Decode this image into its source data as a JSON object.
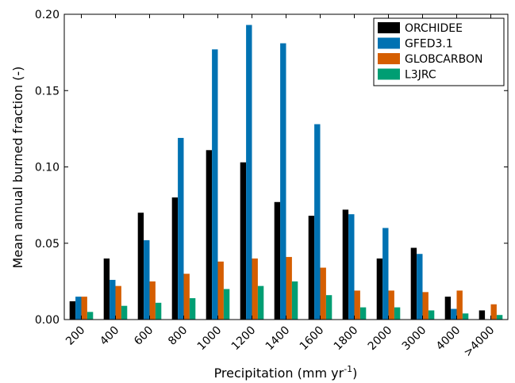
{
  "chart_data": {
    "type": "bar",
    "xlabel": "Precipitation (mm yr",
    "xlabel_sup": "-1",
    "xlabel_end": ")",
    "ylabel": "Mean annual burned fraction (-)",
    "ylim": [
      0,
      0.2
    ],
    "yticks": [
      "0.00",
      "0.05",
      "0.10",
      "0.15",
      "0.20"
    ],
    "categories": [
      "200",
      "400",
      "600",
      "800",
      "1000",
      "1200",
      "1400",
      "1600",
      "1800",
      "2000",
      "3000",
      "4000",
      ">4000"
    ],
    "series": [
      {
        "name": "ORCHIDEE",
        "color": "#000000",
        "values": [
          0.012,
          0.04,
          0.07,
          0.08,
          0.111,
          0.103,
          0.077,
          0.068,
          0.072,
          0.04,
          0.047,
          0.015,
          0.006
        ]
      },
      {
        "name": "GFED3.1",
        "color": "#0072b2",
        "values": [
          0.015,
          0.026,
          0.052,
          0.119,
          0.177,
          0.193,
          0.181,
          0.128,
          0.069,
          0.06,
          0.043,
          0.007,
          0.0
        ]
      },
      {
        "name": "GLOBCARBON",
        "color": "#d55e00",
        "values": [
          0.015,
          0.022,
          0.025,
          0.03,
          0.038,
          0.04,
          0.041,
          0.034,
          0.019,
          0.019,
          0.018,
          0.019,
          0.01
        ]
      },
      {
        "name": "L3JRC",
        "color": "#009e73",
        "values": [
          0.005,
          0.009,
          0.011,
          0.014,
          0.02,
          0.022,
          0.025,
          0.016,
          0.008,
          0.008,
          0.006,
          0.004,
          0.003
        ]
      }
    ],
    "legend": "top-right",
    "grid": false
  }
}
